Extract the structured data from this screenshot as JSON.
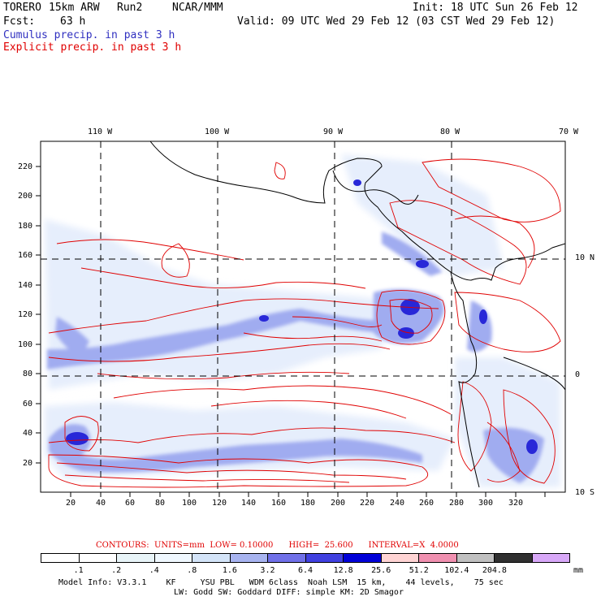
{
  "header": {
    "model": "TORERO",
    "resolution": "15km ARW",
    "run": "Run2",
    "center": "NCAR/MMM",
    "init": "Init: 18 UTC Sun 26 Feb 12",
    "fcst_label": "Fcst:",
    "fcst_value": "63 h",
    "valid": "Valid: 09 UTC Wed 29 Feb 12 (03 CST Wed 29 Feb 12)"
  },
  "legend": {
    "cumulus": "Cumulus precip. in past 3 h",
    "explicit": "Explicit precip. in past 3 h",
    "cumulus_color": "#3030c0",
    "explicit_color": "#e00000"
  },
  "map": {
    "x_ticks": [
      "20",
      "40",
      "60",
      "80",
      "100",
      "120",
      "140",
      "160",
      "180",
      "200",
      "220",
      "240",
      "260",
      "280",
      "300",
      "320"
    ],
    "y_ticks": [
      "20",
      "40",
      "60",
      "80",
      "100",
      "120",
      "140",
      "160",
      "180",
      "200",
      "220"
    ],
    "lon_labels": [
      "110 W",
      "100 W",
      "90 W",
      "80 W",
      "70 W"
    ],
    "lat_labels": [
      "10 N",
      "0",
      "10 S"
    ]
  },
  "contours": {
    "text": "CONTOURS:  UNITS=mm  LOW= 0.10000      HIGH=  25.600      INTERVAL=X  4.0000"
  },
  "colorbar": {
    "labels": [
      ".1",
      ".2",
      ".4",
      ".8",
      "1.6",
      "3.2",
      "6.4",
      "12.8",
      "25.6",
      "51.2",
      "102.4",
      "204.8"
    ],
    "units": "mm",
    "colors": [
      "#ffffff",
      "#ffffff",
      "#e8f4f8",
      "#f0f8ff",
      "#d4e4f8",
      "#a8b4f0",
      "#7070e8",
      "#4040e0",
      "#0000d8",
      "#ffd4d4",
      "#f090b0",
      "#c0c0c0",
      "#303030",
      "#d8a8f8"
    ]
  },
  "footer": {
    "line1": "Model Info: V3.3.1    KF     YSU PBL   WDM 6class  Noah LSM  15 km,    44 levels,    75 sec",
    "line2": "LW: Godd SW: Goddard DIFF: simple KM: 2D Smagor"
  }
}
